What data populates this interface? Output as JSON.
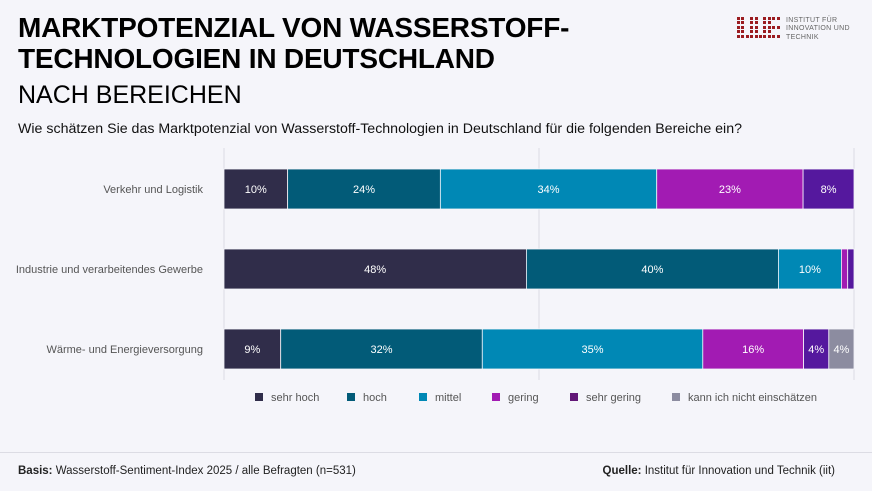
{
  "header": {
    "title_line1": "MARKTPOTENZIAL VON WASSERSTOFF-",
    "title_line2": "TECHNOLOGIEN IN DEUTSCHLAND",
    "subtitle": "NACH BEREICHEN",
    "question": "Wie schätzen Sie das Marktpotenzial von Wasserstoff-Technologien in Deutschland für die folgenden Bereiche ein?"
  },
  "logo": {
    "icon": "iit-logo-icon",
    "line1": "INSTITUT FÜR",
    "line2": "INNOVATION UND",
    "line3": "TECHNIK",
    "color": "#9b1c20"
  },
  "chart_data": {
    "type": "bar",
    "orientation": "horizontal",
    "stacked": true,
    "title": "",
    "xlabel": "",
    "ylabel": "",
    "xlim": [
      0,
      100
    ],
    "grid": true,
    "gridlines_at": [
      0,
      50,
      100
    ],
    "legend_position": "bottom",
    "categories": [
      "Verkehr und Logistik",
      "Industrie und verarbeitendes Gewerbe",
      "Wärme- und Energieversorgung"
    ],
    "series": [
      {
        "name": "sehr hoch",
        "color": "#302d4a",
        "values": [
          10,
          48,
          9
        ],
        "labels": [
          "10%",
          "48%",
          "9%"
        ]
      },
      {
        "name": "hoch",
        "color": "#025b78",
        "values": [
          24,
          40,
          32
        ],
        "labels": [
          "24%",
          "40%",
          "32%"
        ]
      },
      {
        "name": "mittel",
        "color": "#0088b5",
        "values": [
          34,
          10,
          35
        ],
        "labels": [
          "34%",
          "10%",
          "35%"
        ]
      },
      {
        "name": "gering",
        "color": "#a21bb3",
        "values": [
          23,
          1,
          16
        ],
        "labels": [
          "23%",
          "",
          "16%"
        ]
      },
      {
        "name": "sehr gering",
        "color": "#55189e",
        "values": [
          8,
          1,
          4
        ],
        "labels": [
          "8%",
          "",
          "4%"
        ]
      },
      {
        "name": "kann ich nicht einschätzen",
        "color": "#8c8ca0",
        "values": [
          0,
          0,
          4
        ],
        "labels": [
          "",
          "",
          "4%"
        ]
      }
    ],
    "legend_swatch_colors": [
      "#302d4a",
      "#025b78",
      "#0088b5",
      "#a21bb3",
      "#621777",
      "#8c8ca0"
    ]
  },
  "footer": {
    "basis_label": "Basis:",
    "basis_text": " Wasserstoff-Sentiment-Index 2025 / alle Befragten (n=531)",
    "source_label": "Quelle:",
    "source_text": " Institut für Innovation und Technik (iit)"
  }
}
